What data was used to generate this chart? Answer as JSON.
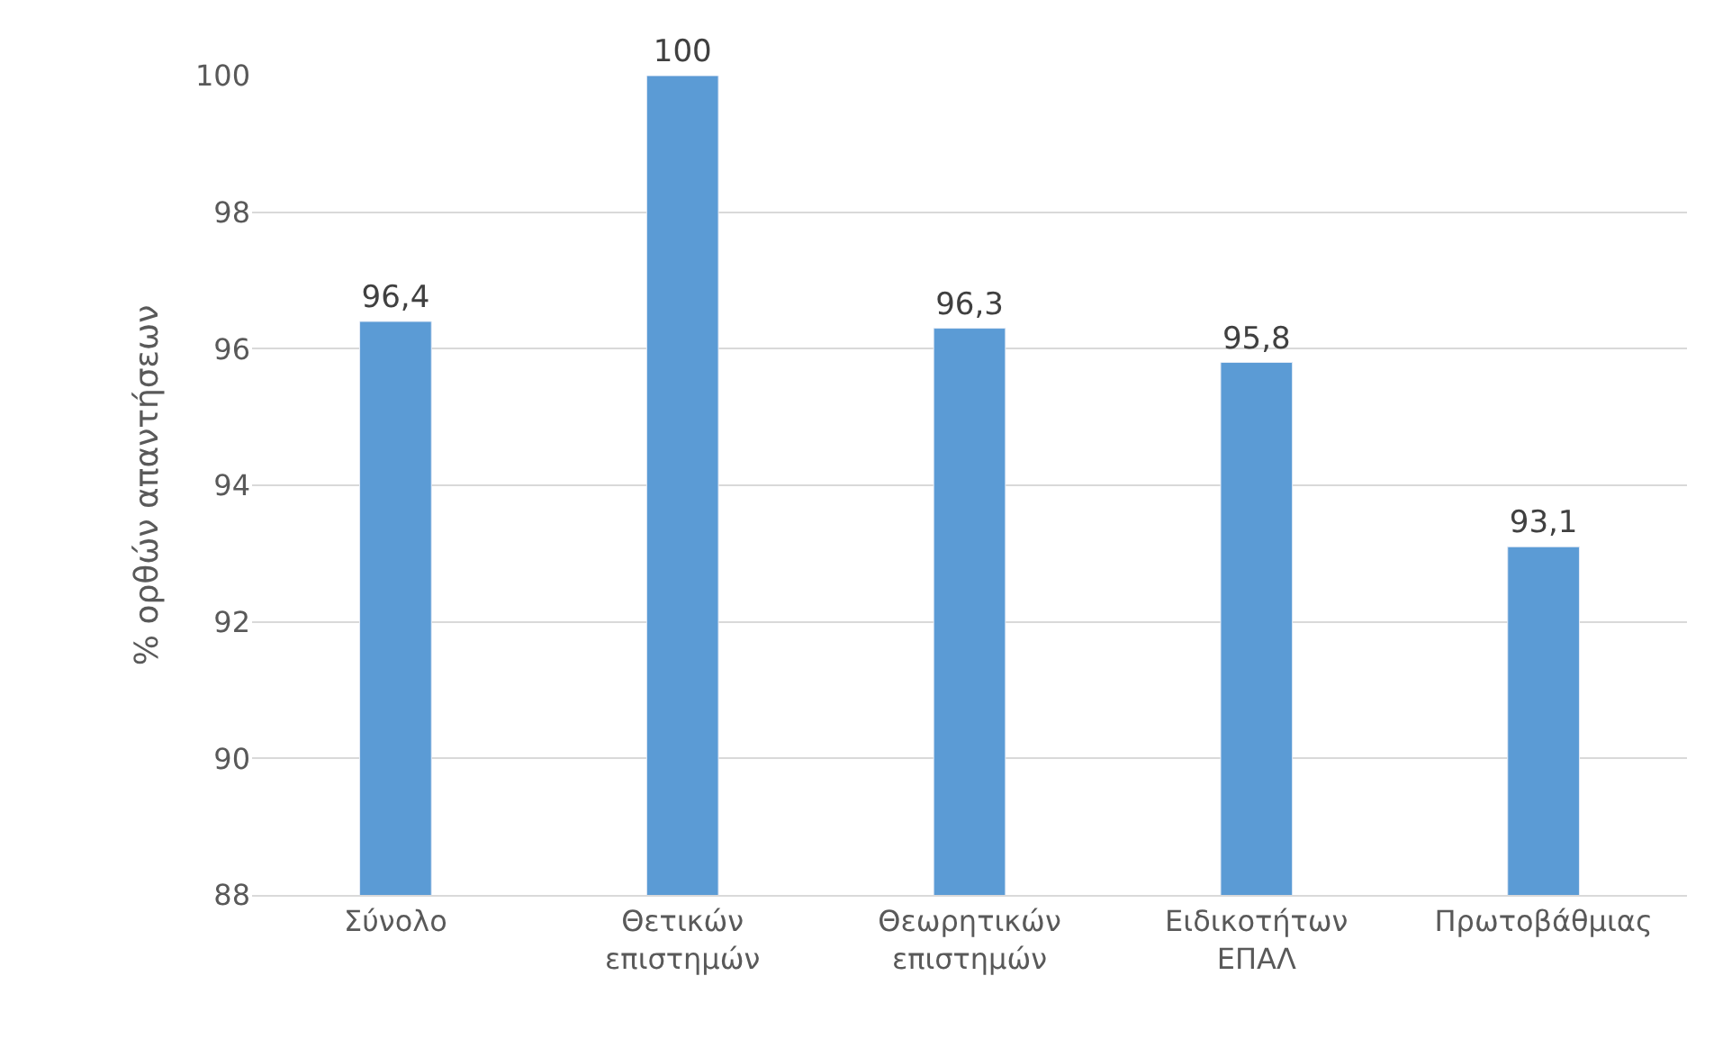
{
  "chart_data": {
    "type": "bar",
    "ylabel": "% ορθών απαντήσεων",
    "categories": [
      "Σύνολο",
      "Θετικών\nεπιστημών",
      "Θεωρητικών\nεπιστημών",
      "Ειδικοτήτων\nΕΠΑΛ",
      "Πρωτοβάθμιας"
    ],
    "values": [
      96.4,
      100,
      96.3,
      95.8,
      93.1
    ],
    "value_labels": [
      "96,4",
      "100",
      "96,3",
      "95,8",
      "93,1"
    ],
    "color": "#5b9bd5",
    "ylim": [
      88,
      100
    ],
    "yticks": [
      88,
      90,
      92,
      94,
      96,
      98,
      100
    ],
    "grid": "y"
  }
}
